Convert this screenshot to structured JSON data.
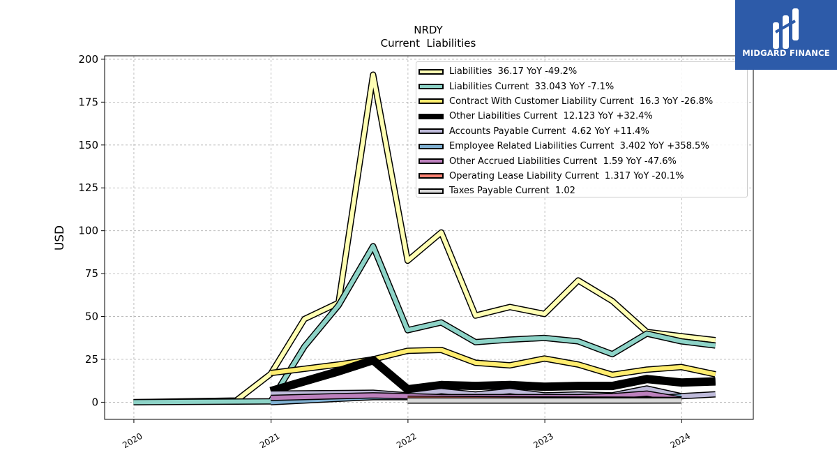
{
  "brand": {
    "name": "MIDGARD FINANCE",
    "color": "#2d5ba9"
  },
  "chart_data": {
    "type": "line",
    "title": "NRDY",
    "subtitle": "Current  Liabilities",
    "ylabel": "USD",
    "xlabel": "",
    "ylim": [
      -10,
      202
    ],
    "yticks": [
      0,
      25,
      50,
      75,
      100,
      125,
      150,
      175,
      200
    ],
    "xlim": [
      "2019-10-15",
      "2024-07-10"
    ],
    "xticks": [
      "2020-01-01",
      "2021-01-01",
      "2022-01-01",
      "2023-01-01",
      "2024-01-01"
    ],
    "xtick_labels": [
      "2020",
      "2021",
      "2022",
      "2023",
      "2024"
    ],
    "grid": true,
    "legend_position": "top-right",
    "series": [
      {
        "name": "Liabilities  36.17 YoY -49.2%",
        "color": "#ffffb3",
        "width": 6,
        "dates": [
          "2019-12-31",
          "2020-09-30",
          "2020-12-31",
          "2021-03-31",
          "2021-06-30",
          "2021-09-30",
          "2021-12-31",
          "2022-03-31",
          "2022-06-30",
          "2022-09-30",
          "2022-12-31",
          "2023-03-31",
          "2023-06-30",
          "2023-09-30",
          "2023-12-31",
          "2024-03-31"
        ],
        "values": [
          0,
          1,
          16.5,
          48.5,
          58,
          191,
          82.5,
          99,
          50.5,
          55.5,
          51.5,
          71,
          59,
          41,
          38.5,
          36.17
        ]
      },
      {
        "name": "Liabilities Current  33.043 YoY -7.1%",
        "color": "#8dd3c7",
        "width": 6,
        "dates": [
          "2019-12-31",
          "2020-12-31",
          "2021-03-31",
          "2021-06-30",
          "2021-09-30",
          "2021-12-31",
          "2022-03-31",
          "2022-06-30",
          "2022-09-30",
          "2022-12-31",
          "2023-03-31",
          "2023-06-30",
          "2023-09-30",
          "2023-12-31",
          "2024-03-31"
        ],
        "values": [
          0,
          0.5,
          32.5,
          56.5,
          91,
          42,
          46.5,
          35,
          36.5,
          37.5,
          35.5,
          28,
          40,
          35.5,
          33.043
        ]
      },
      {
        "name": "Contract With Customer Liability Current  16.3 YoY -26.8%",
        "color": "#ffed6f",
        "width": 6,
        "dates": [
          "2020-12-31",
          "2021-06-30",
          "2021-09-30",
          "2021-12-31",
          "2022-03-31",
          "2022-06-30",
          "2022-09-30",
          "2022-12-31",
          "2023-03-31",
          "2023-06-30",
          "2023-09-30",
          "2023-12-31",
          "2024-03-31"
        ],
        "values": [
          17,
          22,
          25,
          30,
          30.5,
          23,
          21.5,
          25.5,
          22,
          16,
          19,
          20.5,
          16.3
        ]
      },
      {
        "name": "Other Liabilities Current  12.123 YoY +32.4%",
        "color": "#000000",
        "width": 9,
        "dates": [
          "2020-12-31",
          "2021-06-30",
          "2021-09-30",
          "2021-12-31",
          "2022-03-31",
          "2022-06-30",
          "2022-09-30",
          "2022-12-31",
          "2023-03-31",
          "2023-06-30",
          "2023-09-30",
          "2023-12-31",
          "2024-03-31"
        ],
        "values": [
          6.5,
          18,
          24.5,
          7.5,
          10,
          9.5,
          10,
          9,
          9.5,
          9.5,
          13.5,
          11.5,
          12.123
        ]
      },
      {
        "name": "Accounts Payable Current  4.62 YoY +11.4%",
        "color": "#bebada",
        "width": 6,
        "dates": [
          "2020-12-31",
          "2021-09-30",
          "2021-12-31",
          "2022-03-31",
          "2022-06-30",
          "2022-09-30",
          "2022-12-31",
          "2023-03-31",
          "2023-06-30",
          "2023-09-30",
          "2023-12-31",
          "2024-03-31"
        ],
        "values": [
          5,
          5.5,
          4,
          6.5,
          4.5,
          6.5,
          4,
          4.5,
          4,
          8,
          3.5,
          4.62
        ]
      },
      {
        "name": "Employee Related Liabilities Current  3.402 YoY +358.5%",
        "color": "#80b1d3",
        "width": 6,
        "dates": [
          "2020-12-31",
          "2021-06-30",
          "2021-09-30",
          "2021-12-31",
          "2022-03-31",
          "2022-06-30",
          "2022-09-30",
          "2022-12-31",
          "2023-03-31",
          "2023-06-30",
          "2023-09-30",
          "2023-12-31"
        ],
        "values": [
          0,
          2,
          3,
          3,
          2.5,
          2.5,
          1.5,
          1.5,
          1.5,
          1.5,
          2,
          3.402
        ]
      },
      {
        "name": "Other Accrued Liabilities Current  1.59 YoY -47.6%",
        "color": "#bc80bd",
        "width": 6,
        "dates": [
          "2020-12-31",
          "2021-06-30",
          "2021-09-30",
          "2021-12-31",
          "2022-03-31",
          "2022-06-30",
          "2022-09-30",
          "2022-12-31",
          "2023-03-31",
          "2023-06-30",
          "2023-09-30",
          "2023-12-31"
        ],
        "values": [
          2.5,
          3.5,
          4,
          3.5,
          3,
          3,
          3,
          3,
          3,
          3.5,
          5,
          1.59
        ]
      },
      {
        "name": "Operating Lease Liability Current  1.317 YoY -20.1%",
        "color": "#fb8072",
        "width": 6,
        "dates": [
          "2021-12-31",
          "2022-06-30",
          "2022-12-31",
          "2023-06-30",
          "2023-12-31"
        ],
        "values": [
          2,
          1.8,
          1.6,
          1.5,
          1.317
        ]
      },
      {
        "name": "Taxes Payable Current  1.02",
        "color": "#d9d9d9",
        "width": 6,
        "dates": [
          "2021-12-31",
          "2022-06-30",
          "2022-12-31",
          "2023-06-30",
          "2023-12-31"
        ],
        "values": [
          1,
          1,
          1,
          1,
          1.02
        ]
      }
    ]
  }
}
